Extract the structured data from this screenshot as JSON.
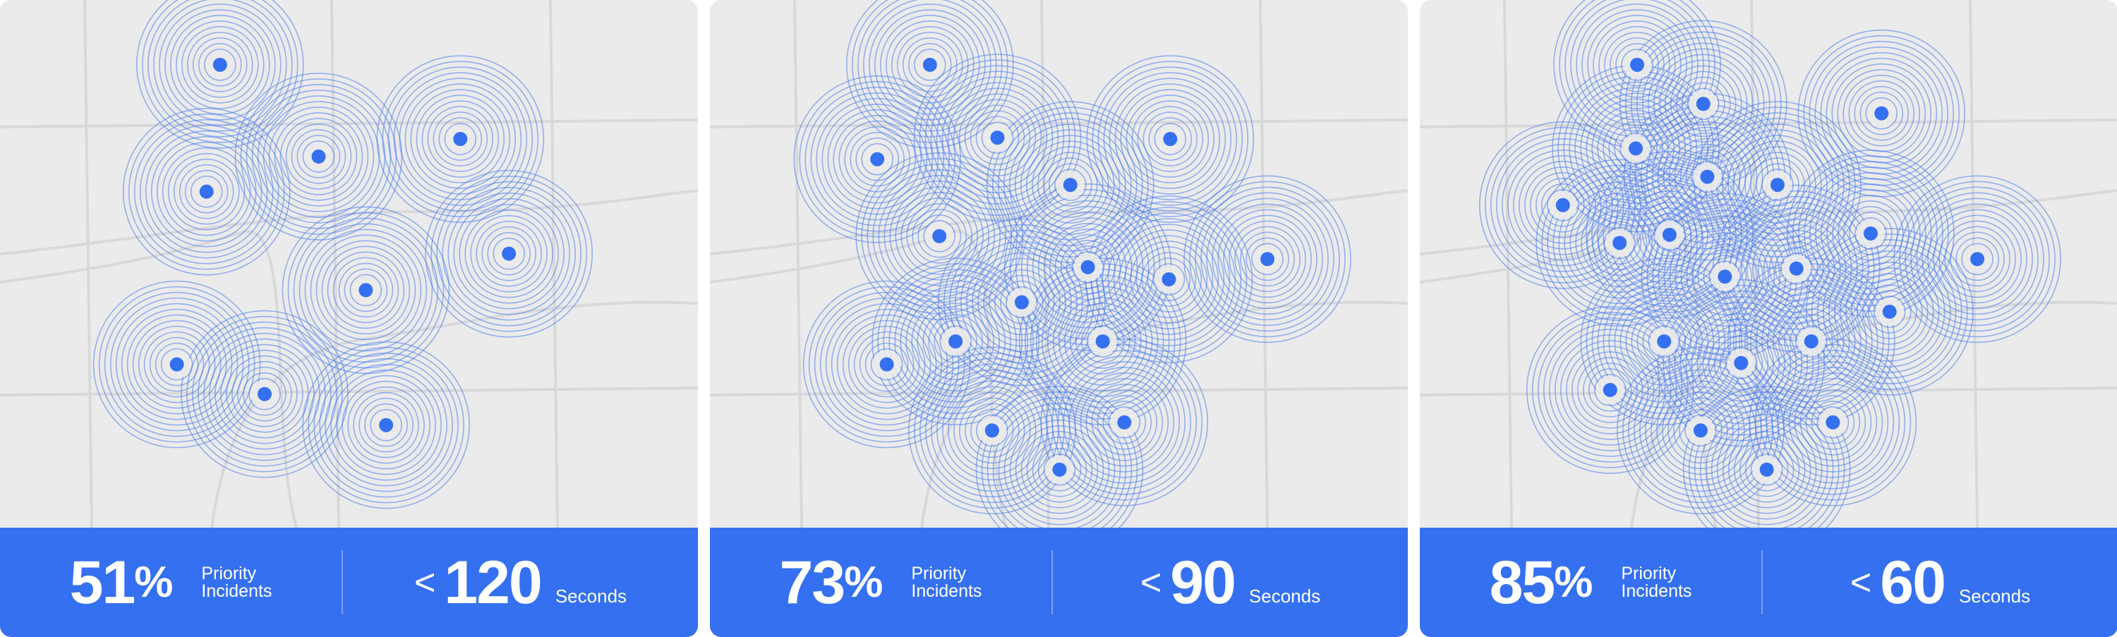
{
  "panels": [
    {
      "percent": "51",
      "percent_unit": "%",
      "percent_label": [
        "Priority",
        "Incidents"
      ],
      "time_prefix": "<",
      "time_value": "120",
      "time_unit": "Seconds"
    },
    {
      "percent": "73",
      "percent_unit": "%",
      "percent_label": [
        "Priority",
        "Incidents"
      ],
      "time_prefix": "<",
      "time_value": "90",
      "time_unit": "Seconds"
    },
    {
      "percent": "85",
      "percent_unit": "%",
      "percent_label": [
        "Priority",
        "Incidents"
      ],
      "time_prefix": "<",
      "time_value": "60",
      "time_unit": "Seconds"
    }
  ]
}
